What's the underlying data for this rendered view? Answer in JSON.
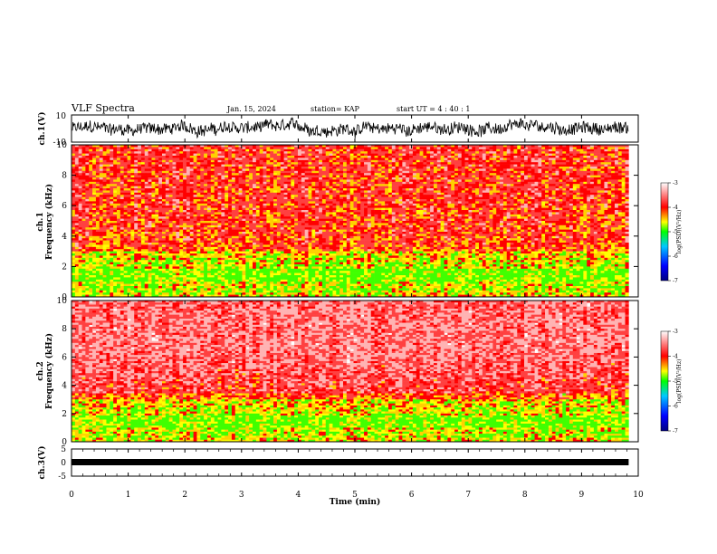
{
  "header": {
    "title": "VLF Spectra",
    "date": "Jan. 15, 2024",
    "station": "station= KAP",
    "start_ut": "start  UT =  4 : 40 : 1"
  },
  "chart_data": [
    {
      "type": "line",
      "panel": "ch1-waveform",
      "ylabel": "ch.1(V)",
      "ylim": [
        -10,
        10
      ],
      "y_tick_labels": [
        "10",
        "-10"
      ],
      "xlim": [
        0,
        10
      ],
      "data_extent_min": 9.83,
      "signal": "dense noise waveform, mostly between -6 and 6 V",
      "color": "#000000"
    },
    {
      "type": "heatmap",
      "panel": "ch1-spectrogram",
      "ylabel_top": "ch.1",
      "ylabel_bottom": "Frequency (kHz)",
      "ylim": [
        0,
        10
      ],
      "y_tick_labels": [
        "0",
        "2",
        "4",
        "6",
        "8",
        "10"
      ],
      "xlim": [
        0,
        10
      ],
      "data_extent_min": 9.83,
      "colorbar": {
        "label": "log(PSD)(V²/Hz)",
        "ticks": [
          "-3",
          "-4",
          "-5",
          "-6",
          "-7"
        ],
        "range": [
          -7,
          -3
        ]
      }
    },
    {
      "type": "heatmap",
      "panel": "ch2-spectrogram",
      "ylabel_top": "ch.2",
      "ylabel_bottom": "Frequency (kHz)",
      "ylim": [
        0,
        10
      ],
      "y_tick_labels": [
        "0",
        "2",
        "4",
        "6",
        "8",
        "10"
      ],
      "xlim": [
        0,
        10
      ],
      "data_extent_min": 9.83,
      "colorbar": {
        "label": "log(PSD)(V²/Hz)",
        "ticks": [
          "-3",
          "-4",
          "-5",
          "-6",
          "-7"
        ],
        "range": [
          -7,
          -3
        ]
      }
    },
    {
      "type": "line",
      "panel": "ch3-waveform",
      "ylabel": "ch.3(V)",
      "ylim": [
        -5,
        5
      ],
      "y_tick_labels": [
        "5",
        "0",
        "-5"
      ],
      "xlim": [
        0,
        10
      ],
      "data_extent_min": 9.83,
      "signal": "thick flat band centered near -1 V",
      "color": "#000000"
    }
  ],
  "x_axis": {
    "label": "Time (min)",
    "tick_labels": [
      "0",
      "1",
      "2",
      "3",
      "4",
      "5",
      "6",
      "7",
      "8",
      "9",
      "10"
    ]
  },
  "colors": {
    "colorscale": [
      "#000080",
      "#0000ff",
      "#00c8ff",
      "#00ff00",
      "#ffff00",
      "#ff0000",
      "#ffffff"
    ]
  }
}
